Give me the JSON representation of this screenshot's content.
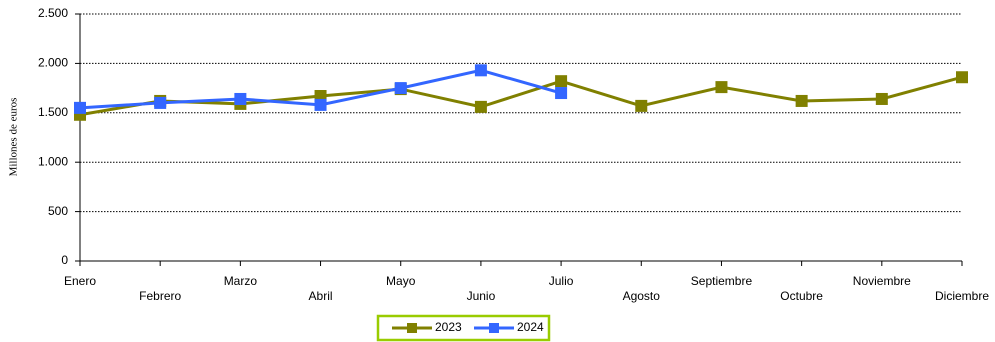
{
  "chart_data": {
    "type": "line",
    "y_label": "Millones de euros",
    "categories": [
      "Enero",
      "Febrero",
      "Marzo",
      "Abril",
      "Mayo",
      "Junio",
      "Julio",
      "Agosto",
      "Septiembre",
      "Octubre",
      "Noviembre",
      "Diciembre"
    ],
    "series": [
      {
        "name": "2023",
        "color": "#808000",
        "values": [
          1480,
          1620,
          1590,
          1670,
          1740,
          1560,
          1820,
          1570,
          1760,
          1620,
          1640,
          1860
        ]
      },
      {
        "name": "2024",
        "color": "#3366ff",
        "values": [
          1550,
          1600,
          1640,
          1580,
          1750,
          1930,
          1700,
          null,
          null,
          null,
          null,
          null
        ]
      }
    ],
    "ylim": [
      0,
      2500
    ],
    "yticks": [
      0,
      500,
      {
        "value": 1000,
        "label": "1.000"
      },
      {
        "value": 1500,
        "label": "1.500"
      },
      {
        "value": 2000,
        "label": "2.000"
      },
      {
        "value": 2500,
        "label": "2.500"
      }
    ],
    "grid": true,
    "legend": "bottom"
  }
}
